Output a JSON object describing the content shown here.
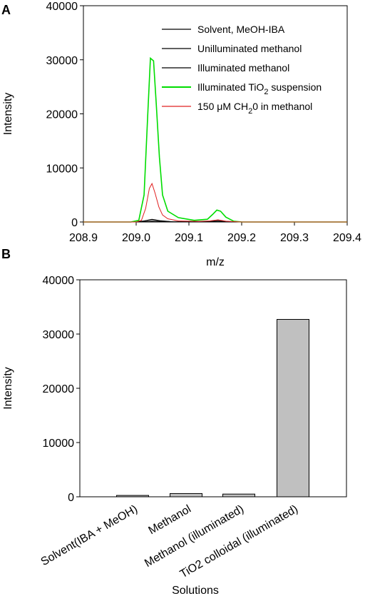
{
  "chart_data": [
    {
      "panel_label": "A",
      "type": "line",
      "xlabel": "m/z",
      "ylabel": "Intensity",
      "xlim": [
        208.9,
        209.4
      ],
      "ylim": [
        0,
        40000
      ],
      "x_ticks": [
        "208.9",
        "209.0",
        "209.1",
        "209.2",
        "209.3",
        "209.4"
      ],
      "y_ticks": [
        "0",
        "10000",
        "20000",
        "30000",
        "40000"
      ],
      "legend_position": "top-right",
      "series": [
        {
          "name": "Solvent, MeOH-IBA",
          "color": "#000000",
          "points": [
            [
              208.9,
              0
            ],
            [
              209.0,
              0
            ],
            [
              209.015,
              60
            ],
            [
              209.03,
              150
            ],
            [
              209.05,
              60
            ],
            [
              209.08,
              10
            ],
            [
              209.14,
              40
            ],
            [
              209.155,
              120
            ],
            [
              209.17,
              30
            ],
            [
              209.2,
              0
            ],
            [
              209.4,
              0
            ]
          ]
        },
        {
          "name": "Unilluminated methanol",
          "color": "#000000",
          "points": [
            [
              208.9,
              0
            ],
            [
              209.0,
              0
            ],
            [
              209.015,
              200
            ],
            [
              209.03,
              500
            ],
            [
              209.045,
              250
            ],
            [
              209.07,
              30
            ],
            [
              209.14,
              100
            ],
            [
              209.155,
              350
            ],
            [
              209.17,
              80
            ],
            [
              209.2,
              0
            ],
            [
              209.4,
              0
            ]
          ]
        },
        {
          "name": "Illuminated methanol",
          "color": "#000000",
          "points": [
            [
              208.9,
              0
            ],
            [
              209.0,
              0
            ],
            [
              209.015,
              180
            ],
            [
              209.03,
              420
            ],
            [
              209.045,
              200
            ],
            [
              209.07,
              20
            ],
            [
              209.14,
              80
            ],
            [
              209.155,
              300
            ],
            [
              209.17,
              60
            ],
            [
              209.2,
              0
            ],
            [
              209.4,
              0
            ]
          ]
        },
        {
          "name_prefix": "Illuminated TiO",
          "name_sub": "2",
          "name_suffix": " suspension",
          "color": "#00dd00",
          "points": [
            [
              208.9,
              0
            ],
            [
              208.99,
              0
            ],
            [
              209.005,
              300
            ],
            [
              209.015,
              5000
            ],
            [
              209.022,
              20000
            ],
            [
              209.027,
              30300
            ],
            [
              209.033,
              29800
            ],
            [
              209.038,
              22000
            ],
            [
              209.044,
              12000
            ],
            [
              209.05,
              5000
            ],
            [
              209.06,
              2000
            ],
            [
              209.08,
              800
            ],
            [
              209.11,
              300
            ],
            [
              209.135,
              500
            ],
            [
              209.145,
              1400
            ],
            [
              209.153,
              2200
            ],
            [
              209.16,
              2000
            ],
            [
              209.17,
              900
            ],
            [
              209.185,
              150
            ],
            [
              209.2,
              0
            ],
            [
              209.4,
              0
            ]
          ]
        },
        {
          "name_prefix": "150 μM CH",
          "name_sub": "2",
          "name_suffix": "0 in methanol",
          "color": "#e02020",
          "points": [
            [
              208.9,
              0
            ],
            [
              209.0,
              0
            ],
            [
              209.01,
              300
            ],
            [
              209.018,
              2500
            ],
            [
              209.025,
              6200
            ],
            [
              209.03,
              7100
            ],
            [
              209.036,
              5300
            ],
            [
              209.043,
              2800
            ],
            [
              209.05,
              1300
            ],
            [
              209.06,
              600
            ],
            [
              209.08,
              200
            ],
            [
              209.12,
              120
            ],
            [
              209.14,
              200
            ],
            [
              209.155,
              400
            ],
            [
              209.17,
              150
            ],
            [
              209.2,
              0
            ],
            [
              209.4,
              0
            ]
          ]
        }
      ]
    },
    {
      "panel_label": "B",
      "type": "bar",
      "xlabel": "Solutions",
      "ylabel": "Intensity",
      "ylim": [
        0,
        40000
      ],
      "y_ticks": [
        "0",
        "10000",
        "20000",
        "30000",
        "40000"
      ],
      "categories": [
        "Solvent(IBA + MeOH)",
        "Methanol",
        "Methanol (illuminated)",
        "TiO2 colloidal (illuminated)"
      ],
      "values": [
        250,
        600,
        500,
        32700
      ],
      "bar_color": "#c0c0c0"
    }
  ]
}
